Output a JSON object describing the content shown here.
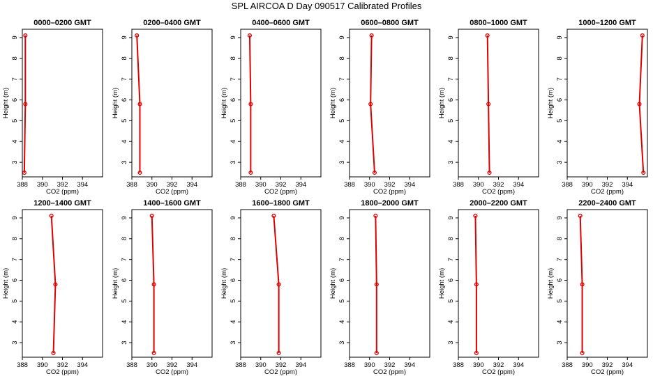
{
  "figure_title": "SPL AIRCOA D  Day 090517  Calibrated Profiles",
  "colors": {
    "series": "#dd0000",
    "axis": "#000000",
    "background": "#ffffff"
  },
  "chart_data": [
    {
      "type": "line",
      "title": "0000–0200 GMT",
      "xlabel": "CO2 (ppm)",
      "ylabel": "Height (m)",
      "xlim": [
        388,
        396
      ],
      "ylim": [
        2.3,
        9.4
      ],
      "xticks": [
        388,
        390,
        392,
        394
      ],
      "yticks": [
        3,
        4,
        5,
        6,
        7,
        8,
        9
      ],
      "series": [
        {
          "x": [
            388.2,
            388.3,
            388.3
          ],
          "y": [
            2.5,
            5.8,
            9.1
          ]
        }
      ]
    },
    {
      "type": "line",
      "title": "0200–0400 GMT",
      "xlabel": "CO2 (ppm)",
      "ylabel": "Height (m)",
      "xlim": [
        388,
        396
      ],
      "ylim": [
        2.3,
        9.4
      ],
      "xticks": [
        388,
        390,
        392,
        394
      ],
      "yticks": [
        3,
        4,
        5,
        6,
        7,
        8,
        9
      ],
      "series": [
        {
          "x": [
            388.8,
            388.8,
            388.5
          ],
          "y": [
            2.5,
            5.8,
            9.1
          ]
        }
      ]
    },
    {
      "type": "line",
      "title": "0400–0600 GMT",
      "xlabel": "CO2 (ppm)",
      "ylabel": "Height (m)",
      "xlim": [
        388,
        396
      ],
      "ylim": [
        2.3,
        9.4
      ],
      "xticks": [
        388,
        390,
        392,
        394
      ],
      "yticks": [
        3,
        4,
        5,
        6,
        7,
        8,
        9
      ],
      "series": [
        {
          "x": [
            389.0,
            389.0,
            388.9
          ],
          "y": [
            2.5,
            5.8,
            9.1
          ]
        }
      ]
    },
    {
      "type": "line",
      "title": "0600–0800 GMT",
      "xlabel": "CO2 (ppm)",
      "ylabel": "Height (m)",
      "xlim": [
        388,
        396
      ],
      "ylim": [
        2.3,
        9.4
      ],
      "xticks": [
        388,
        390,
        392,
        394
      ],
      "yticks": [
        3,
        4,
        5,
        6,
        7,
        8,
        9
      ],
      "series": [
        {
          "x": [
            390.5,
            390.1,
            390.2
          ],
          "y": [
            2.5,
            5.8,
            9.1
          ]
        }
      ]
    },
    {
      "type": "line",
      "title": "0800–1000 GMT",
      "xlabel": "CO2 (ppm)",
      "ylabel": "Height (m)",
      "xlim": [
        388,
        396
      ],
      "ylim": [
        2.3,
        9.4
      ],
      "xticks": [
        388,
        390,
        392,
        394
      ],
      "yticks": [
        3,
        4,
        5,
        6,
        7,
        8,
        9
      ],
      "series": [
        {
          "x": [
            391.1,
            391.0,
            390.9
          ],
          "y": [
            2.5,
            5.8,
            9.1
          ]
        }
      ]
    },
    {
      "type": "line",
      "title": "1000–1200 GMT",
      "xlabel": "CO2 (ppm)",
      "ylabel": "Height (m)",
      "xlim": [
        388,
        396
      ],
      "ylim": [
        2.3,
        9.4
      ],
      "xticks": [
        388,
        390,
        392,
        394
      ],
      "yticks": [
        3,
        4,
        5,
        6,
        7,
        8,
        9
      ],
      "series": [
        {
          "x": [
            395.6,
            395.2,
            395.5
          ],
          "y": [
            2.5,
            5.8,
            9.1
          ]
        }
      ]
    },
    {
      "type": "line",
      "title": "1200–1400 GMT",
      "xlabel": "CO2 (ppm)",
      "ylabel": "Height (m)",
      "xlim": [
        388,
        396
      ],
      "ylim": [
        2.3,
        9.4
      ],
      "xticks": [
        388,
        390,
        392,
        394
      ],
      "yticks": [
        3,
        4,
        5,
        6,
        7,
        8,
        9
      ],
      "series": [
        {
          "x": [
            391.1,
            391.3,
            390.9
          ],
          "y": [
            2.5,
            5.8,
            9.1
          ]
        }
      ]
    },
    {
      "type": "line",
      "title": "1400–1600 GMT",
      "xlabel": "CO2 (ppm)",
      "ylabel": "Height (m)",
      "xlim": [
        388,
        396
      ],
      "ylim": [
        2.3,
        9.4
      ],
      "xticks": [
        388,
        390,
        392,
        394
      ],
      "yticks": [
        3,
        4,
        5,
        6,
        7,
        8,
        9
      ],
      "series": [
        {
          "x": [
            390.2,
            390.2,
            390.0
          ],
          "y": [
            2.5,
            5.8,
            9.1
          ]
        }
      ]
    },
    {
      "type": "line",
      "title": "1600–1800 GMT",
      "xlabel": "CO2 (ppm)",
      "ylabel": "Height (m)",
      "xlim": [
        388,
        396
      ],
      "ylim": [
        2.3,
        9.4
      ],
      "xticks": [
        388,
        390,
        392,
        394
      ],
      "yticks": [
        3,
        4,
        5,
        6,
        7,
        8,
        9
      ],
      "series": [
        {
          "x": [
            391.8,
            391.8,
            391.3
          ],
          "y": [
            2.5,
            5.8,
            9.1
          ]
        }
      ]
    },
    {
      "type": "line",
      "title": "1800–2000 GMT",
      "xlabel": "CO2 (ppm)",
      "ylabel": "Height (m)",
      "xlim": [
        388,
        396
      ],
      "ylim": [
        2.3,
        9.4
      ],
      "xticks": [
        388,
        390,
        392,
        394
      ],
      "yticks": [
        3,
        4,
        5,
        6,
        7,
        8,
        9
      ],
      "series": [
        {
          "x": [
            390.7,
            390.7,
            390.6
          ],
          "y": [
            2.5,
            5.8,
            9.1
          ]
        }
      ]
    },
    {
      "type": "line",
      "title": "2000–2200 GMT",
      "xlabel": "CO2 (ppm)",
      "ylabel": "Height (m)",
      "xlim": [
        388,
        396
      ],
      "ylim": [
        2.3,
        9.4
      ],
      "xticks": [
        388,
        390,
        392,
        394
      ],
      "yticks": [
        3,
        4,
        5,
        6,
        7,
        8,
        9
      ],
      "series": [
        {
          "x": [
            389.8,
            389.8,
            389.7
          ],
          "y": [
            2.5,
            5.8,
            9.1
          ]
        }
      ]
    },
    {
      "type": "line",
      "title": "2200–2400 GMT",
      "xlabel": "CO2 (ppm)",
      "ylabel": "Height (m)",
      "xlim": [
        388,
        396
      ],
      "ylim": [
        2.3,
        9.4
      ],
      "xticks": [
        388,
        390,
        392,
        394
      ],
      "yticks": [
        3,
        4,
        5,
        6,
        7,
        8,
        9
      ],
      "series": [
        {
          "x": [
            389.5,
            389.5,
            389.3
          ],
          "y": [
            2.5,
            5.8,
            9.1
          ]
        }
      ]
    }
  ]
}
